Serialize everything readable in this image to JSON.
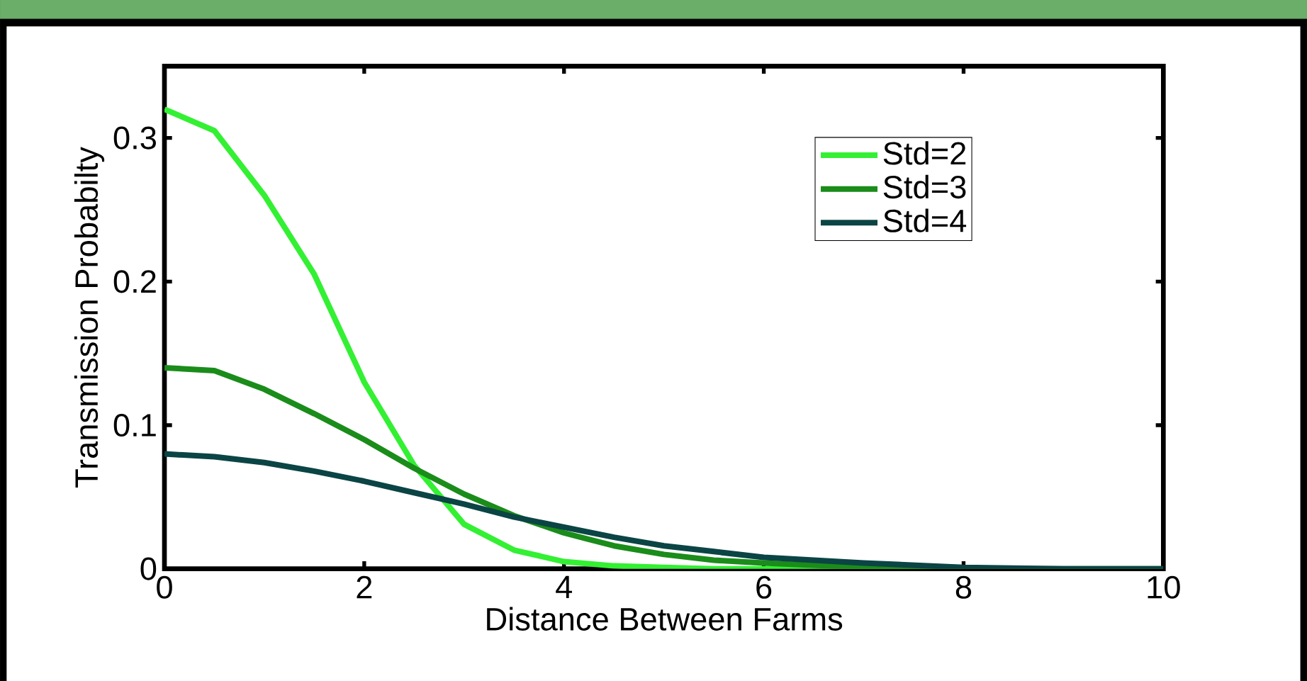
{
  "chart_data": {
    "type": "line",
    "xlabel": "Distance Between Farms",
    "ylabel": "Transmission Probabilty",
    "xlim": [
      0,
      10
    ],
    "ylim": [
      0,
      0.35
    ],
    "xticks": [
      0,
      2,
      4,
      6,
      8,
      10
    ],
    "yticks": [
      0,
      0.1,
      0.2,
      0.3
    ],
    "legend": "top right",
    "grid": false,
    "marker": "none",
    "line_style": "solid",
    "x": [
      0,
      0.5,
      1,
      1.5,
      2,
      2.5,
      3,
      3.5,
      4,
      4.5,
      5,
      5.5,
      6,
      7,
      8,
      9,
      10
    ],
    "series": [
      {
        "name": "Std=2",
        "color": "#33f033",
        "values": [
          0.32,
          0.305,
          0.26,
          0.205,
          0.13,
          0.072,
          0.031,
          0.013,
          0.005,
          0.002,
          0.001,
          0,
          0,
          0,
          0,
          null,
          null
        ]
      },
      {
        "name": "Std=3",
        "color": "#1a8c1a",
        "values": [
          0.14,
          0.138,
          0.125,
          0.108,
          0.09,
          0.07,
          0.052,
          0.037,
          0.025,
          0.016,
          0.01,
          0.006,
          0.004,
          0.001,
          0,
          0,
          0
        ]
      },
      {
        "name": "Std=4",
        "color": "#0b4444",
        "values": [
          0.08,
          0.078,
          0.074,
          0.068,
          0.061,
          0.053,
          0.045,
          0.036,
          0.029,
          0.022,
          0.016,
          0.012,
          0.008,
          0.004,
          0.001,
          0,
          0
        ]
      }
    ]
  }
}
